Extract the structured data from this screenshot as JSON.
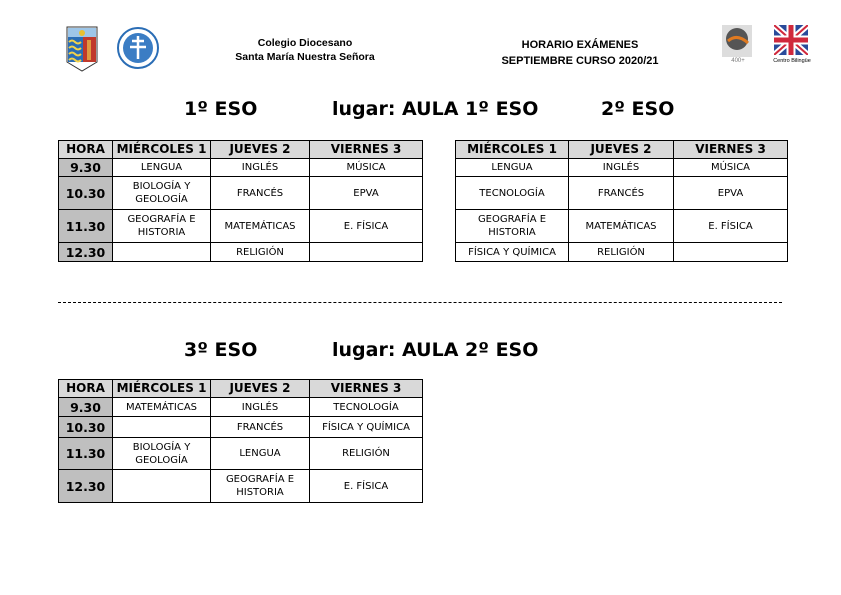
{
  "header": {
    "school_line1": "Colegio Diocesano",
    "school_line2": "Santa María Nuestra Señora",
    "title_line1": "HORARIO EXÁMENES",
    "title_line2": "SEPTIEMBRE CURSO 2020/21",
    "badge_text": "400+",
    "bilingual_label": "Centro Bilingüe"
  },
  "section1": {
    "course_a": "1º ESO",
    "place": "lugar: AULA 1º ESO",
    "course_b": "2º ESO"
  },
  "section2": {
    "course": "3º ESO",
    "place": "lugar: AULA 2º ESO"
  },
  "tables": [
    {
      "headers": [
        "HORA",
        "MIÉRCOLES 1",
        "JUEVES 2",
        "VIERNES 3"
      ],
      "rows": [
        [
          "9.30",
          "LENGUA",
          "INGLÉS",
          "MÚSICA"
        ],
        [
          "10.30",
          "BIOLOGÍA Y GEOLOGÍA",
          "FRANCÉS",
          "EPVA"
        ],
        [
          "11.30",
          "GEOGRAFÍA E HISTORIA",
          "MATEMÁTICAS",
          "E. FÍSICA"
        ],
        [
          "12.30",
          "",
          "RELIGIÓN",
          ""
        ]
      ]
    },
    {
      "headers": [
        "MIÉRCOLES 1",
        "JUEVES 2",
        "VIERNES 3"
      ],
      "rows": [
        [
          "LENGUA",
          "INGLÉS",
          "MÚSICA"
        ],
        [
          "TECNOLOGÍA",
          "FRANCÉS",
          "EPVA"
        ],
        [
          "GEOGRAFÍA E HISTORIA",
          "MATEMÁTICAS",
          "E. FÍSICA"
        ],
        [
          "FÍSICA Y QUÍMICA",
          "RELIGIÓN",
          ""
        ]
      ]
    },
    {
      "headers": [
        "HORA",
        "MIÉRCOLES 1",
        "JUEVES 2",
        "VIERNES 3"
      ],
      "rows": [
        [
          "9.30",
          "MATEMÁTICAS",
          "INGLÉS",
          "TECNOLOGÍA"
        ],
        [
          "10.30",
          "",
          "FRANCÉS",
          "FÍSICA Y QUÍMICA"
        ],
        [
          "11.30",
          "BIOLOGÍA Y GEOLOGÍA",
          "LENGUA",
          "RELIGIÓN"
        ],
        [
          "12.30",
          "",
          "GEOGRAFÍA E HISTORIA",
          "E. FÍSICA"
        ]
      ]
    }
  ]
}
